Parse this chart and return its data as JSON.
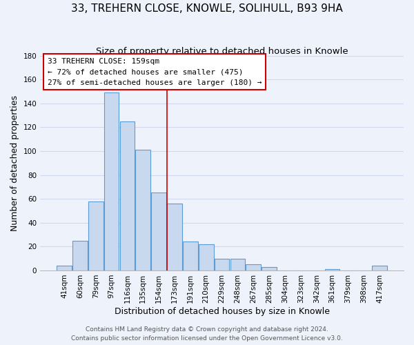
{
  "title": "33, TREHERN CLOSE, KNOWLE, SOLIHULL, B93 9HA",
  "subtitle": "Size of property relative to detached houses in Knowle",
  "xlabel": "Distribution of detached houses by size in Knowle",
  "ylabel": "Number of detached properties",
  "bar_labels": [
    "41sqm",
    "60sqm",
    "79sqm",
    "97sqm",
    "116sqm",
    "135sqm",
    "154sqm",
    "173sqm",
    "191sqm",
    "210sqm",
    "229sqm",
    "248sqm",
    "267sqm",
    "285sqm",
    "304sqm",
    "323sqm",
    "342sqm",
    "361sqm",
    "379sqm",
    "398sqm",
    "417sqm"
  ],
  "bar_values": [
    4,
    25,
    58,
    149,
    125,
    101,
    65,
    56,
    24,
    22,
    10,
    10,
    5,
    3,
    0,
    0,
    0,
    1,
    0,
    0,
    4
  ],
  "bar_color": "#c8d9ef",
  "bar_edge_color": "#5b9bd5",
  "ylim": [
    0,
    180
  ],
  "yticks": [
    0,
    20,
    40,
    60,
    80,
    100,
    120,
    140,
    160,
    180
  ],
  "property_line_x": 6.5,
  "annotation_line1": "33 TREHERN CLOSE: 159sqm",
  "annotation_line2": "← 72% of detached houses are smaller (475)",
  "annotation_line3": "27% of semi-detached houses are larger (180) →",
  "annotation_box_color": "#ffffff",
  "annotation_box_edge_color": "#cc0000",
  "property_line_color": "#cc0000",
  "footer_line1": "Contains HM Land Registry data © Crown copyright and database right 2024.",
  "footer_line2": "Contains public sector information licensed under the Open Government Licence v3.0.",
  "background_color": "#eef2fb",
  "grid_color": "#d0d8f0",
  "title_fontsize": 11,
  "subtitle_fontsize": 9.5,
  "axis_label_fontsize": 9,
  "tick_fontsize": 7.5,
  "annotation_fontsize": 8,
  "footer_fontsize": 6.5
}
